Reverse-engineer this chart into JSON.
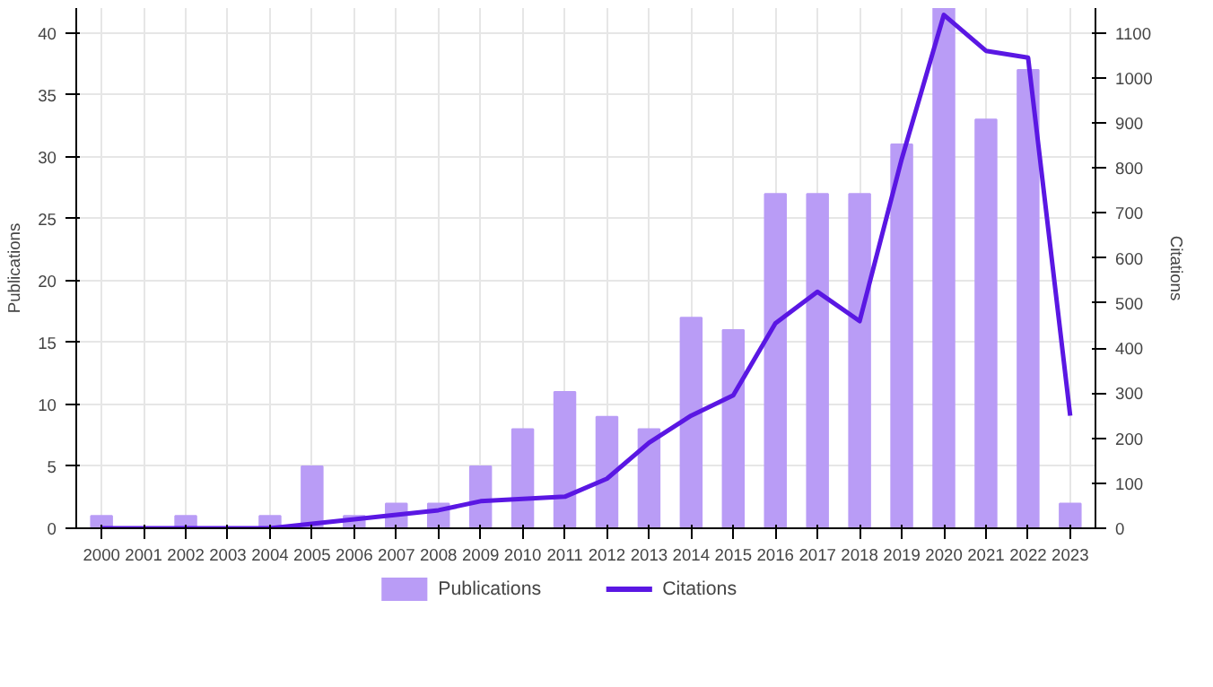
{
  "chart_data": {
    "type": "bar",
    "ylabel": "Publications",
    "y2label": "Citations",
    "categories": [
      "2000",
      "2001",
      "2002",
      "2003",
      "2004",
      "2005",
      "2006",
      "2007",
      "2008",
      "2009",
      "2010",
      "2011",
      "2012",
      "2013",
      "2014",
      "2015",
      "2016",
      "2017",
      "2018",
      "2019",
      "2020",
      "2021",
      "2022",
      "2023"
    ],
    "series": [
      {
        "name": "Publications",
        "color": "#b99cf6",
        "values": [
          1,
          0,
          1,
          0,
          1,
          5,
          1,
          2,
          2,
          5,
          8,
          11,
          9,
          8,
          17,
          16,
          27,
          27,
          27,
          31,
          42,
          33,
          37,
          2
        ]
      },
      {
        "name": "Citations",
        "type": "line",
        "axis": "y2",
        "color": "#5a17e3",
        "values": [
          0,
          0,
          0,
          0,
          0,
          10,
          20,
          30,
          40,
          60,
          65,
          70,
          110,
          190,
          250,
          295,
          455,
          525,
          460,
          820,
          1140,
          1060,
          1045,
          250
        ]
      }
    ],
    "ylim": [
      0,
      42
    ],
    "yticks": [
      0,
      5,
      10,
      15,
      20,
      25,
      30,
      35,
      40
    ],
    "y2lim": [
      0,
      1155
    ],
    "y2ticks": [
      0,
      100,
      200,
      300,
      400,
      500,
      600,
      700,
      800,
      900,
      1000,
      1100
    ],
    "grid": true,
    "legend": "bottom"
  }
}
